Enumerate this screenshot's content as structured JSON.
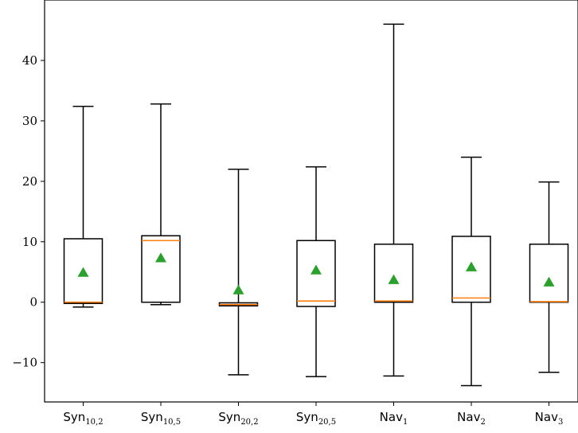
{
  "chart_data": {
    "type": "box",
    "title": "",
    "xlabel": "",
    "ylabel": "",
    "ylim": [
      -16.5,
      50
    ],
    "yticks": [
      -10,
      0,
      10,
      20,
      30,
      40
    ],
    "ytick_labels": [
      "−10",
      "0",
      "10",
      "20",
      "30",
      "40"
    ],
    "categories": [
      {
        "base": "Syn",
        "sub": "10,2"
      },
      {
        "base": "Syn",
        "sub": "10,5"
      },
      {
        "base": "Syn",
        "sub": "20,2"
      },
      {
        "base": "Syn",
        "sub": "20,5"
      },
      {
        "base": "Nav",
        "sub": "1"
      },
      {
        "base": "Nav",
        "sub": "2"
      },
      {
        "base": "Nav",
        "sub": "3"
      }
    ],
    "boxes": [
      {
        "whislo": -0.8,
        "q1": -0.2,
        "med": 0.0,
        "q3": 10.5,
        "whishi": 32.4,
        "mean": 4.9
      },
      {
        "whislo": -0.4,
        "q1": 0.0,
        "med": 10.2,
        "q3": 11.0,
        "whishi": 32.8,
        "mean": 7.3
      },
      {
        "whislo": -12.0,
        "q1": -0.6,
        "med": -0.4,
        "q3": -0.1,
        "whishi": 22.0,
        "mean": 2.0
      },
      {
        "whislo": -12.3,
        "q1": -0.7,
        "med": 0.2,
        "q3": 10.2,
        "whishi": 22.4,
        "mean": 5.3
      },
      {
        "whislo": -12.2,
        "q1": 0.0,
        "med": 0.2,
        "q3": 9.6,
        "whishi": 46.0,
        "mean": 3.7
      },
      {
        "whislo": -13.8,
        "q1": 0.0,
        "med": 0.7,
        "q3": 10.9,
        "whishi": 24.0,
        "mean": 5.8
      },
      {
        "whislo": -11.6,
        "q1": 0.0,
        "med": 0.1,
        "q3": 9.6,
        "whishi": 19.9,
        "mean": 3.3
      }
    ],
    "colors": {
      "box": "#000000",
      "median": "#ff7f0e",
      "mean_marker": "#2ca02c"
    },
    "grid": false,
    "legend": "none"
  }
}
